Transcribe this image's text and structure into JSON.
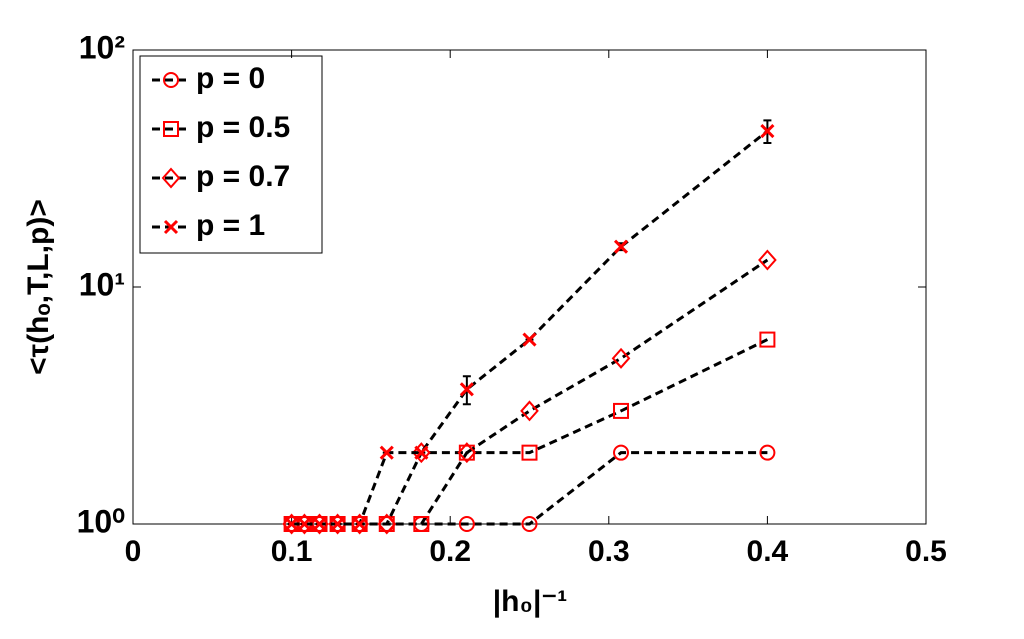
{
  "chart_data": {
    "type": "line",
    "x_label": "|h₀|⁻¹",
    "y_label": "<τ(hₒ,T,L,p)>",
    "x": [
      0.1,
      0.1081,
      0.1176,
      0.129,
      0.1429,
      0.16,
      0.1818,
      0.2105,
      0.25,
      0.3077,
      0.4
    ],
    "series": [
      {
        "name": "p = 0",
        "color": "#ff0000",
        "line_color": "#000000",
        "marker": "circle",
        "values": [
          1,
          1,
          1,
          1,
          1,
          1,
          1,
          1,
          1,
          2,
          2
        ]
      },
      {
        "name": "p = 0.5",
        "color": "#ff0000",
        "line_color": "#000000",
        "marker": "square",
        "values": [
          1,
          1,
          1,
          1,
          1,
          1,
          1,
          2,
          2,
          3,
          6
        ]
      },
      {
        "name": "p = 0.7",
        "color": "#ff0000",
        "line_color": "#000000",
        "marker": "diamond",
        "values": [
          1,
          1,
          1,
          1,
          1,
          1,
          2,
          2,
          3,
          5,
          13
        ]
      },
      {
        "name": "p = 1",
        "color": "#ff0000",
        "line_color": "#000000",
        "marker": "x",
        "values": [
          1,
          1,
          1,
          1,
          1,
          2,
          2,
          3.7,
          6,
          14.8,
          45.5
        ],
        "errors": [
          0,
          0,
          0,
          0,
          0,
          0,
          0,
          0.5,
          0,
          0.5,
          5
        ]
      }
    ],
    "xlim": [
      0,
      0.5
    ],
    "xticks": [
      0,
      0.1,
      0.2,
      0.3,
      0.4,
      0.5
    ],
    "ylim": [
      1,
      100
    ],
    "y_scale": "log",
    "yticks": [
      {
        "value": 1,
        "label": "10⁰"
      },
      {
        "value": 10,
        "label": "10¹"
      },
      {
        "value": 100,
        "label": "10²"
      }
    ],
    "grid": false,
    "legend_position": "upper-left"
  }
}
